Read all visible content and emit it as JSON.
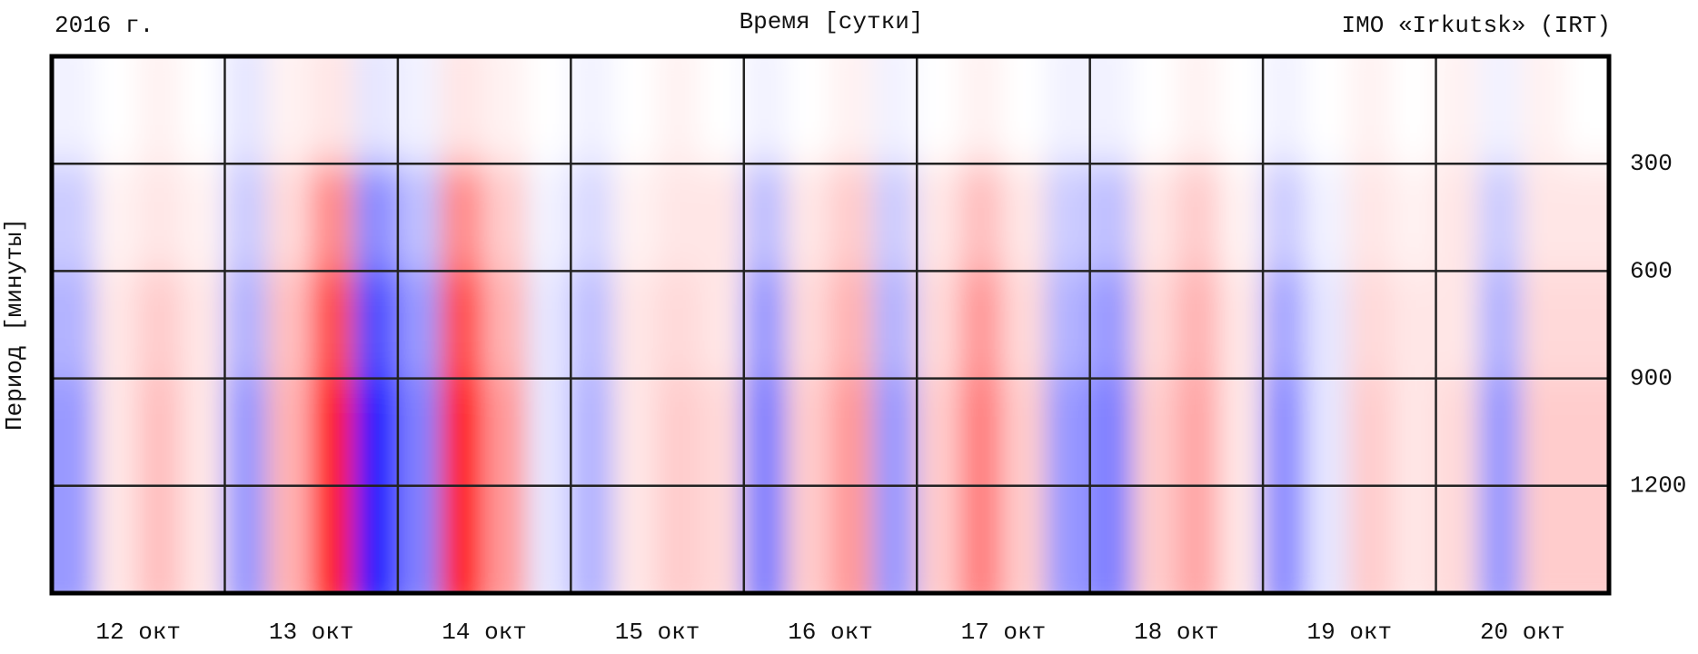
{
  "chart_data": {
    "type": "heatmap",
    "title": "Время [сутки]",
    "year_label": "2016 г.",
    "station_label": "IMO «Irkutsk» (IRT)",
    "y_label": "Период [минуты]",
    "categories": [
      "12 окт",
      "13 окт",
      "14 окт",
      "15 окт",
      "16 окт",
      "17 окт",
      "18 окт",
      "19 окт",
      "20 окт"
    ],
    "ylim": [
      0,
      1500
    ],
    "yticks": [
      300,
      600,
      900,
      1200
    ],
    "y": [
      150,
      450,
      750,
      1050,
      1350
    ],
    "positive_color": "#ff0000",
    "negative_color": "#0000ff",
    "zero_color": "#ffffff",
    "z": [
      [
        -0.05,
        0,
        0.05,
        0,
        -0.1,
        0.05,
        0.1,
        -0.1,
        -0.05,
        0.1,
        0.05,
        0,
        -0.05,
        0,
        0.05,
        0,
        -0.05,
        0,
        0.05,
        -0.05,
        0,
        0.05,
        0,
        -0.05,
        -0.05,
        0,
        0.05,
        0,
        -0.05,
        0,
        0.05,
        0,
        0.05,
        -0.05,
        0.05,
        0
      ],
      [
        -0.2,
        0.05,
        0.1,
        0.05,
        -0.2,
        0.15,
        0.45,
        -0.45,
        -0.25,
        0.45,
        0.2,
        -0.05,
        -0.15,
        0.05,
        0.1,
        0.1,
        -0.25,
        0.1,
        0.2,
        -0.2,
        0.1,
        0.25,
        0.1,
        -0.2,
        -0.25,
        0.1,
        0.2,
        0.05,
        -0.2,
        -0.05,
        0.1,
        0.05,
        0.1,
        -0.2,
        0.1,
        0.1
      ],
      [
        -0.3,
        0.1,
        0.2,
        0.1,
        -0.3,
        0.25,
        0.7,
        -0.7,
        -0.4,
        0.7,
        0.3,
        -0.1,
        -0.25,
        0.1,
        0.15,
        0.1,
        -0.4,
        0.15,
        0.3,
        -0.3,
        0.15,
        0.4,
        0.15,
        -0.3,
        -0.4,
        0.15,
        0.3,
        0.1,
        -0.35,
        -0.1,
        0.15,
        0.1,
        0.1,
        -0.3,
        0.15,
        0.15
      ],
      [
        -0.4,
        0.1,
        0.25,
        0.1,
        -0.4,
        0.3,
        0.9,
        -0.9,
        -0.5,
        0.9,
        0.4,
        -0.1,
        -0.3,
        0.1,
        0.2,
        0.15,
        -0.5,
        0.2,
        0.4,
        -0.4,
        0.2,
        0.5,
        0.2,
        -0.4,
        -0.5,
        0.2,
        0.35,
        0.1,
        -0.45,
        -0.1,
        0.2,
        0.1,
        0.15,
        -0.4,
        0.2,
        0.2
      ],
      [
        -0.4,
        0.1,
        0.25,
        0.1,
        -0.4,
        0.3,
        0.9,
        -0.9,
        -0.5,
        0.9,
        0.4,
        -0.1,
        -0.3,
        0.1,
        0.2,
        0.15,
        -0.5,
        0.2,
        0.4,
        -0.4,
        0.2,
        0.5,
        0.2,
        -0.4,
        -0.5,
        0.2,
        0.35,
        0.1,
        -0.45,
        -0.1,
        0.2,
        0.1,
        0.15,
        -0.4,
        0.2,
        0.2
      ]
    ]
  }
}
